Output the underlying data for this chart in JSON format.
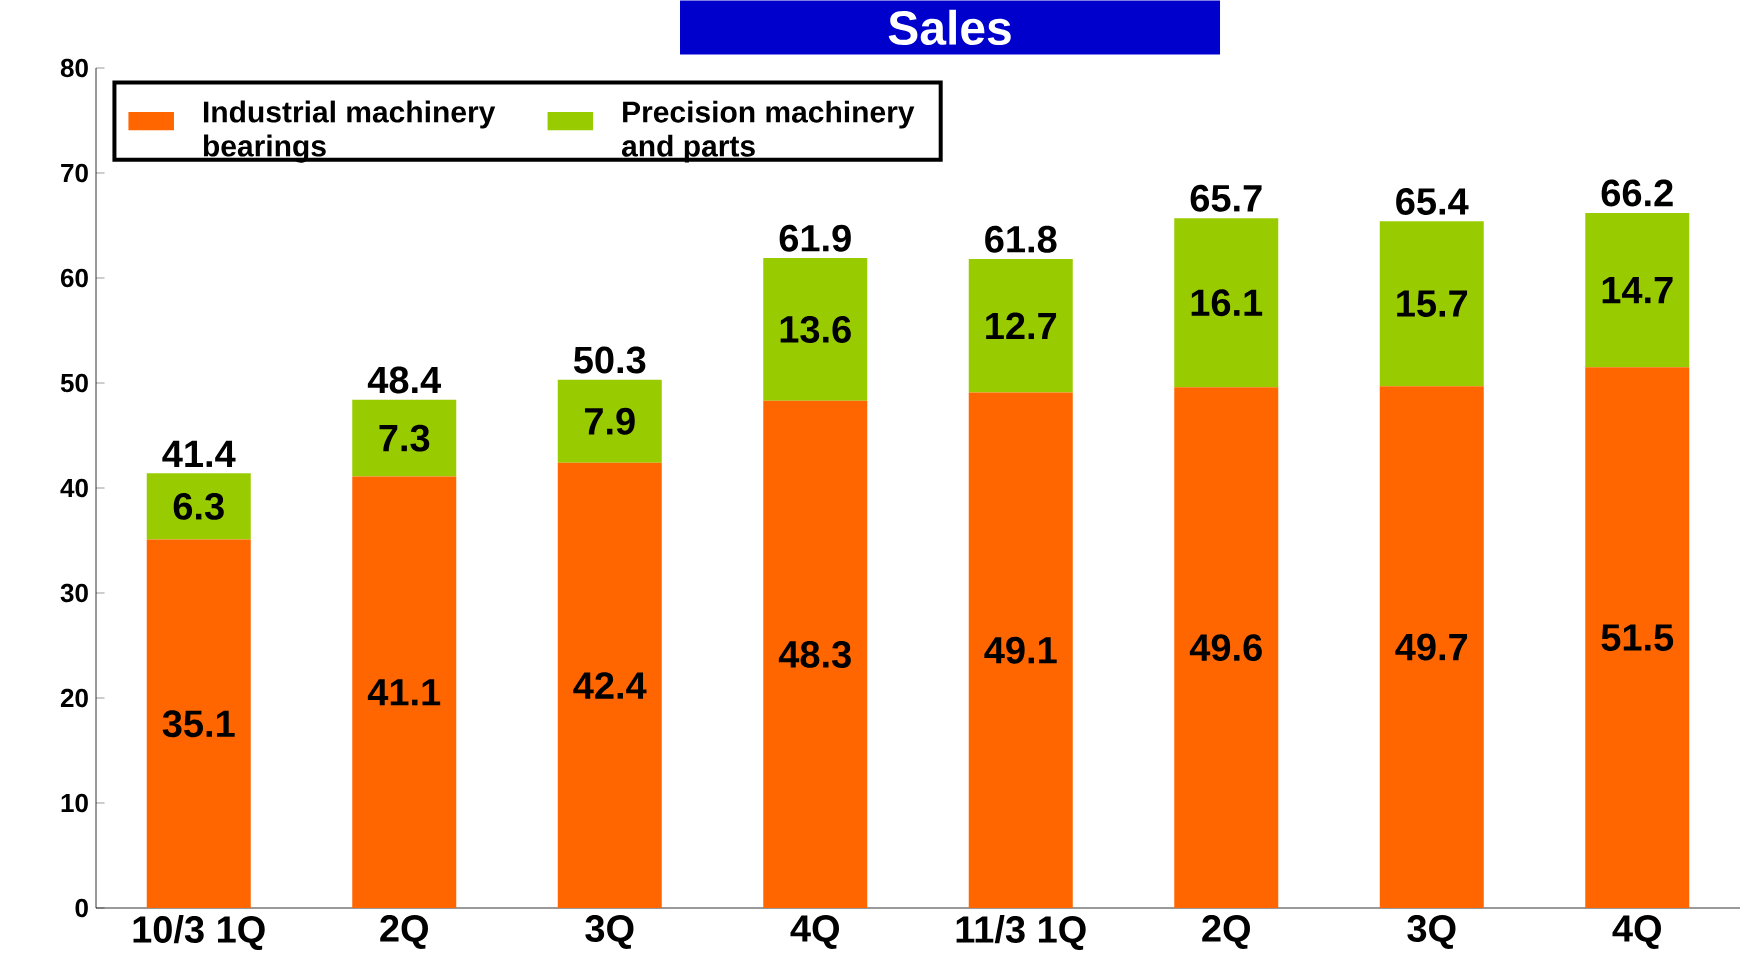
{
  "chart_data": {
    "type": "bar",
    "title": "Sales",
    "stacked": true,
    "categories": [
      "10/3 1Q",
      "2Q",
      "3Q",
      "4Q",
      "11/3 1Q",
      "2Q",
      "3Q",
      "4Q"
    ],
    "series": [
      {
        "name": "Industrial machinery bearings",
        "color": "#ff6600",
        "values": [
          35.1,
          41.1,
          42.4,
          48.3,
          49.1,
          49.6,
          49.7,
          51.5
        ]
      },
      {
        "name": "Precision machinery and parts",
        "color": "#99cc00",
        "values": [
          6.3,
          7.3,
          7.9,
          13.6,
          12.7,
          16.1,
          15.7,
          14.7
        ]
      }
    ],
    "totals": [
      "41.4",
      "48.4",
      "50.3",
      "61.9",
      "61.8",
      "65.7",
      "65.4",
      "66.2"
    ],
    "data_labels": true,
    "legend": "top left",
    "ylim": [
      0,
      80
    ],
    "yticks": [
      0,
      10,
      20,
      30,
      40,
      50,
      60,
      70,
      80
    ]
  }
}
